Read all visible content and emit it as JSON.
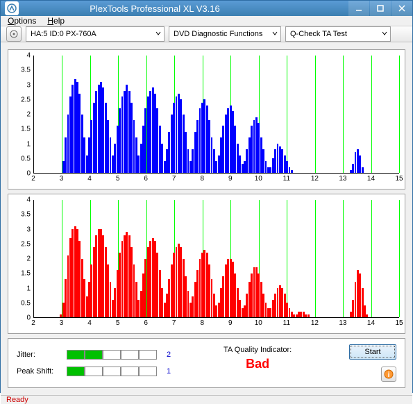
{
  "window": {
    "title": "PlexTools Professional XL V3.16"
  },
  "menu": {
    "options": "Options",
    "help": "Help"
  },
  "toolbar": {
    "drive": "HA:5 ID:0   PX-760A",
    "func": "DVD Diagnostic Functions",
    "test": "Q-Check TA Test"
  },
  "chart": {
    "ymax": 4,
    "ystep": 0.5,
    "xmin": 2,
    "xmax": 15,
    "xticks": [
      2,
      3,
      4,
      5,
      6,
      7,
      8,
      9,
      10,
      11,
      12,
      13,
      14,
      15
    ],
    "grid_color": "#00ff00",
    "top_color": "#0000ff",
    "bot_color": "#ff0000",
    "top_values": [
      0,
      0,
      0,
      0,
      0,
      0,
      0,
      0,
      0,
      0,
      0,
      0,
      0.4,
      1.2,
      2.0,
      2.6,
      3.0,
      3.2,
      3.1,
      2.7,
      2.0,
      1.2,
      0.6,
      1.2,
      1.8,
      2.4,
      2.8,
      3.0,
      3.1,
      2.9,
      2.4,
      1.8,
      1.2,
      0.6,
      1.0,
      1.6,
      2.2,
      2.6,
      2.8,
      3.0,
      2.8,
      2.4,
      1.8,
      1.2,
      0.6,
      1.0,
      1.6,
      2.2,
      2.6,
      2.8,
      2.9,
      2.7,
      2.2,
      1.6,
      1.0,
      0.4,
      0.8,
      1.4,
      2.0,
      2.4,
      2.6,
      2.7,
      2.5,
      2.0,
      1.4,
      0.8,
      0.4,
      0.8,
      1.4,
      1.8,
      2.2,
      2.4,
      2.5,
      2.3,
      1.8,
      1.2,
      0.8,
      0.4,
      0.6,
      1.2,
      1.6,
      2.0,
      2.2,
      2.3,
      2.1,
      1.6,
      1.0,
      0.6,
      0.3,
      0.4,
      0.8,
      1.2,
      1.6,
      1.8,
      1.9,
      1.7,
      1.2,
      0.8,
      0.4,
      0.2,
      0.2,
      0.5,
      0.8,
      1.0,
      0.9,
      0.8,
      0.6,
      0.4,
      0.2,
      0.1,
      0,
      0,
      0,
      0,
      0,
      0,
      0,
      0,
      0,
      0,
      0,
      0,
      0,
      0,
      0,
      0,
      0,
      0,
      0,
      0,
      0,
      0,
      0,
      0,
      0.1,
      0.3,
      0.7,
      0.8,
      0.6,
      0.2,
      0,
      0,
      0,
      0,
      0,
      0,
      0,
      0,
      0,
      0,
      0,
      0,
      0,
      0,
      0
    ],
    "bot_values": [
      0,
      0,
      0,
      0,
      0,
      0,
      0,
      0,
      0,
      0,
      0,
      0.1,
      0.5,
      1.3,
      2.1,
      2.7,
      3.0,
      3.1,
      3.0,
      2.6,
      2.0,
      1.3,
      0.7,
      1.2,
      1.8,
      2.4,
      2.8,
      3.0,
      3.0,
      2.8,
      2.4,
      1.8,
      1.2,
      0.6,
      1.0,
      1.6,
      2.2,
      2.6,
      2.8,
      2.9,
      2.8,
      2.4,
      1.8,
      1.2,
      0.6,
      0.9,
      1.5,
      2.0,
      2.4,
      2.6,
      2.7,
      2.6,
      2.2,
      1.6,
      1.0,
      0.5,
      0.8,
      1.3,
      1.8,
      2.2,
      2.4,
      2.5,
      2.4,
      2.0,
      1.4,
      0.9,
      0.5,
      0.7,
      1.2,
      1.6,
      2.0,
      2.2,
      2.3,
      2.2,
      1.8,
      1.3,
      0.8,
      0.4,
      0.5,
      1.0,
      1.4,
      1.8,
      2.0,
      2.0,
      1.9,
      1.5,
      1.0,
      0.6,
      0.3,
      0.4,
      0.8,
      1.2,
      1.5,
      1.7,
      1.7,
      1.5,
      1.2,
      0.8,
      0.5,
      0.3,
      0.3,
      0.6,
      0.8,
      1.0,
      1.1,
      1.0,
      0.8,
      0.5,
      0.3,
      0.2,
      0.1,
      0.1,
      0.2,
      0.2,
      0.2,
      0.1,
      0.1,
      0,
      0,
      0,
      0,
      0,
      0,
      0,
      0,
      0,
      0,
      0,
      0,
      0,
      0,
      0,
      0,
      0,
      0.2,
      0.6,
      1.2,
      1.6,
      1.5,
      1.0,
      0.4,
      0.1,
      0,
      0,
      0,
      0,
      0,
      0,
      0,
      0,
      0,
      0,
      0,
      0,
      0
    ]
  },
  "metrics": {
    "jitter_label": "Jitter:",
    "peak_label": "Peak Shift:",
    "jitter_val": "2",
    "peak_val": "1",
    "jitter_boxes": [
      true,
      true,
      false,
      false,
      false
    ],
    "peak_boxes": [
      true,
      false,
      false,
      false,
      false
    ]
  },
  "quality": {
    "label": "TA Quality Indicator:",
    "value": "Bad"
  },
  "buttons": {
    "start": "Start"
  },
  "status": "Ready"
}
